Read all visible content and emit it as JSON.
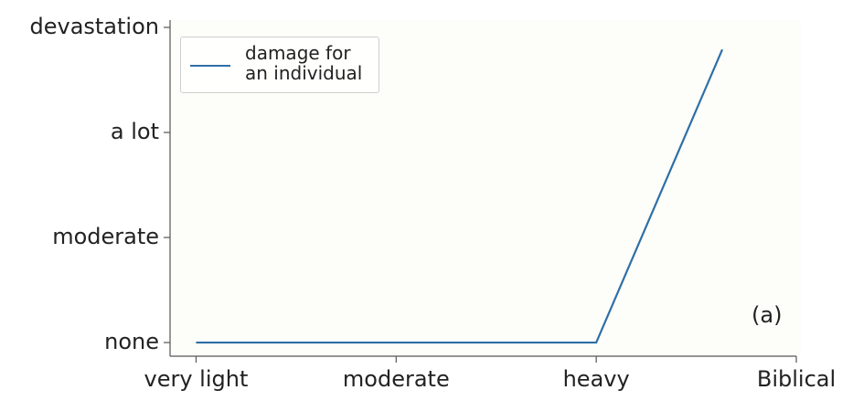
{
  "chart_data": {
    "type": "line",
    "x": [
      0,
      2,
      2.63
    ],
    "series": [
      {
        "name": "damage for\nan individual",
        "color": "#2e6fa7",
        "values": [
          0,
          0,
          2.79
        ]
      }
    ],
    "xlim": [
      -0.13,
      3
    ],
    "ylim": [
      -0.13,
      3
    ],
    "xticks": [
      {
        "value": 0,
        "label": "very light"
      },
      {
        "value": 1,
        "label": "moderate"
      },
      {
        "value": 2,
        "label": "heavy"
      },
      {
        "value": 3,
        "label": "Biblical"
      }
    ],
    "yticks": [
      {
        "value": 0,
        "label": "none"
      },
      {
        "value": 1,
        "label": "moderate"
      },
      {
        "value": 2,
        "label": "a lot"
      },
      {
        "value": 3,
        "label": "devastation"
      }
    ],
    "annotation": "(a)",
    "legend": "upper left",
    "grid": false
  }
}
